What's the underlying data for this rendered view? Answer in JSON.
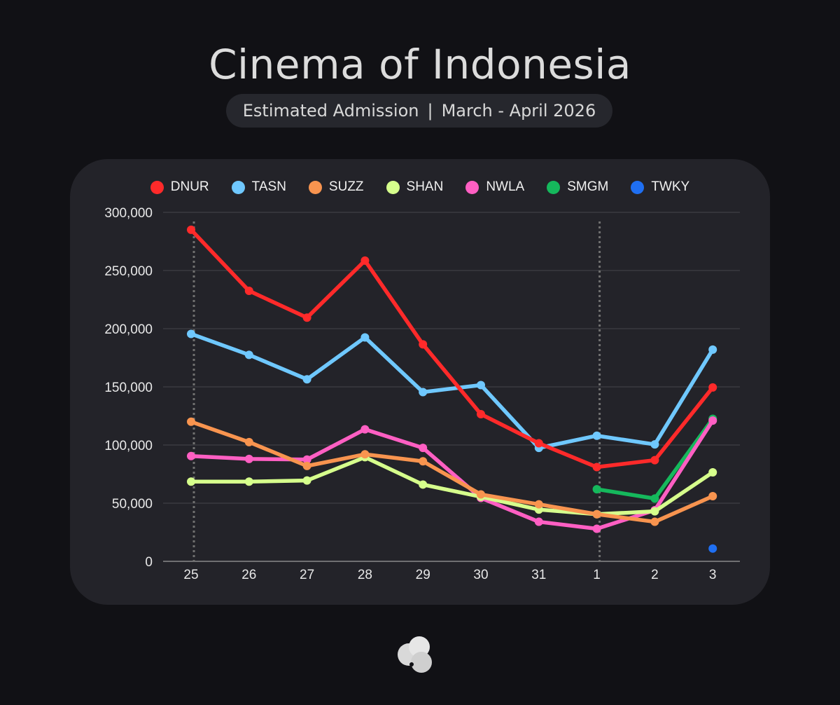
{
  "header": {
    "title": "Cinema of Indonesia",
    "subtitle_left": "Estimated Admission",
    "subtitle_sep": "|",
    "subtitle_right": "March - April 2026"
  },
  "colors": {
    "background": "#111115",
    "card": "#232329",
    "grid": "#44454c",
    "axis": "#8a8a8a",
    "marker_lines": "#707070"
  },
  "chart_data": {
    "type": "line",
    "title": "",
    "xlabel": "",
    "ylabel": "",
    "categories": [
      "25",
      "26",
      "27",
      "28",
      "29",
      "30",
      "31",
      "1",
      "2",
      "3"
    ],
    "ylim": [
      0,
      300000
    ],
    "yticks": [
      0,
      50000,
      100000,
      150000,
      200000,
      250000,
      300000
    ],
    "ytick_labels": [
      "0",
      "50,000",
      "100,000",
      "150,000",
      "200,000",
      "250,000",
      "300,000"
    ],
    "grid": true,
    "legend_position": "top",
    "vertical_markers": [
      "25",
      "1"
    ],
    "series": [
      {
        "name": "DNUR",
        "color": "#ff2a2a",
        "values": [
          285000,
          232500,
          209500,
          258500,
          186500,
          126500,
          101500,
          81000,
          87000,
          149500
        ]
      },
      {
        "name": "TASN",
        "color": "#6fc8ff",
        "values": [
          195500,
          177500,
          156500,
          192500,
          145500,
          151500,
          97500,
          108000,
          100500,
          182000
        ]
      },
      {
        "name": "SUZZ",
        "color": "#f8944f",
        "values": [
          120000,
          102500,
          82000,
          92000,
          86000,
          57500,
          49000,
          40500,
          34000,
          56000
        ]
      },
      {
        "name": "SHAN",
        "color": "#d6ff8c",
        "values": [
          68500,
          68500,
          69500,
          89500,
          66000,
          55500,
          44500,
          40500,
          43000,
          76500
        ]
      },
      {
        "name": "NWLA",
        "color": "#ff5fc3",
        "values": [
          90500,
          88000,
          87500,
          113500,
          97500,
          54500,
          34000,
          28000,
          44000,
          121000
        ]
      },
      {
        "name": "SMGM",
        "color": "#15b85c",
        "values": [
          null,
          null,
          null,
          null,
          null,
          null,
          null,
          62000,
          54000,
          122500
        ]
      },
      {
        "name": "TWKY",
        "color": "#1f6ff2",
        "values": [
          null,
          null,
          null,
          null,
          null,
          null,
          null,
          null,
          null,
          11000
        ]
      }
    ]
  }
}
